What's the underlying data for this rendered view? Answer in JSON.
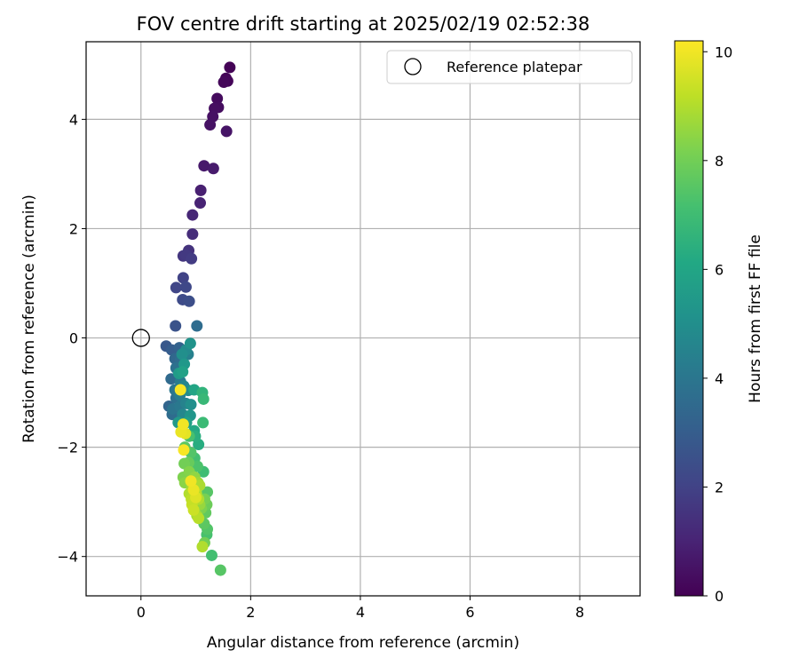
{
  "chart_data": {
    "type": "scatter",
    "title": "FOV centre drift starting at 2025/02/19 02:52:38",
    "xlabel": "Angular distance from reference (arcmin)",
    "ylabel": "Rotation from reference (arcmin)",
    "xlim": [
      -1,
      9.1
    ],
    "ylim": [
      -4.72,
      5.42
    ],
    "xticks": [
      0,
      2,
      4,
      6,
      8
    ],
    "yticks": [
      -4,
      -2,
      0,
      2,
      4
    ],
    "xtick_labels": [
      "0",
      "2",
      "4",
      "6",
      "8"
    ],
    "ytick_labels": [
      "−4",
      "−2",
      "0",
      "2",
      "4"
    ],
    "grid": true,
    "legend": {
      "placement": "top-right",
      "entries": [
        "Reference platepar"
      ]
    },
    "reference_point": {
      "x": 0,
      "y": 0,
      "label": "Reference platepar",
      "marker": "open-circle"
    },
    "colorbar": {
      "label": "Hours from first FF file",
      "colormap": "viridis",
      "range": [
        0,
        10.2
      ],
      "ticks": [
        0,
        2,
        4,
        6,
        8,
        10
      ],
      "tick_labels": [
        "0",
        "2",
        "4",
        "6",
        "8",
        "10"
      ]
    },
    "points": [
      {
        "x": 1.62,
        "y": 4.95,
        "c": 0.05
      },
      {
        "x": 1.55,
        "y": 4.75,
        "c": 0.1
      },
      {
        "x": 1.58,
        "y": 4.7,
        "c": 0.15
      },
      {
        "x": 1.51,
        "y": 4.68,
        "c": 0.2
      },
      {
        "x": 1.39,
        "y": 4.38,
        "c": 0.3
      },
      {
        "x": 1.41,
        "y": 4.22,
        "c": 0.35
      },
      {
        "x": 1.34,
        "y": 4.2,
        "c": 0.4
      },
      {
        "x": 1.31,
        "y": 4.05,
        "c": 0.45
      },
      {
        "x": 1.26,
        "y": 3.9,
        "c": 0.5
      },
      {
        "x": 1.56,
        "y": 3.78,
        "c": 0.55
      },
      {
        "x": 1.15,
        "y": 3.15,
        "c": 0.7
      },
      {
        "x": 1.32,
        "y": 3.1,
        "c": 0.75
      },
      {
        "x": 1.09,
        "y": 2.7,
        "c": 0.9
      },
      {
        "x": 1.08,
        "y": 2.47,
        "c": 1.0
      },
      {
        "x": 0.94,
        "y": 2.25,
        "c": 1.1
      },
      {
        "x": 0.94,
        "y": 1.9,
        "c": 1.3
      },
      {
        "x": 0.87,
        "y": 1.6,
        "c": 1.5
      },
      {
        "x": 0.77,
        "y": 1.5,
        "c": 1.6
      },
      {
        "x": 0.82,
        "y": 1.52,
        "c": 1.7
      },
      {
        "x": 0.92,
        "y": 1.45,
        "c": 1.8
      },
      {
        "x": 0.77,
        "y": 1.1,
        "c": 2.0
      },
      {
        "x": 0.64,
        "y": 0.92,
        "c": 2.1
      },
      {
        "x": 0.82,
        "y": 0.93,
        "c": 2.2
      },
      {
        "x": 0.76,
        "y": 0.7,
        "c": 2.3
      },
      {
        "x": 0.88,
        "y": 0.67,
        "c": 2.4
      },
      {
        "x": 0.63,
        "y": 0.22,
        "c": 2.6
      },
      {
        "x": 1.02,
        "y": 0.22,
        "c": 3.6
      },
      {
        "x": 0.46,
        "y": -0.15,
        "c": 2.8
      },
      {
        "x": 0.56,
        "y": -0.22,
        "c": 3.0
      },
      {
        "x": 0.7,
        "y": -0.18,
        "c": 3.2
      },
      {
        "x": 0.62,
        "y": -0.38,
        "c": 3.4
      },
      {
        "x": 0.72,
        "y": -0.4,
        "c": 3.6
      },
      {
        "x": 0.86,
        "y": -0.3,
        "c": 4.4
      },
      {
        "x": 0.9,
        "y": -0.1,
        "c": 5.2
      },
      {
        "x": 0.82,
        "y": -0.22,
        "c": 4.8
      },
      {
        "x": 0.75,
        "y": -0.3,
        "c": 5.0
      },
      {
        "x": 0.79,
        "y": -0.48,
        "c": 5.4
      },
      {
        "x": 0.64,
        "y": -0.55,
        "c": 3.8
      },
      {
        "x": 0.69,
        "y": -0.65,
        "c": 5.6
      },
      {
        "x": 0.76,
        "y": -0.62,
        "c": 5.8
      },
      {
        "x": 0.55,
        "y": -0.75,
        "c": 3.5
      },
      {
        "x": 0.72,
        "y": -0.8,
        "c": 4.2
      },
      {
        "x": 0.62,
        "y": -0.95,
        "c": 4.0
      },
      {
        "x": 0.78,
        "y": -0.88,
        "c": 4.6
      },
      {
        "x": 0.86,
        "y": -0.96,
        "c": 4.9
      },
      {
        "x": 0.97,
        "y": -0.95,
        "c": 6.0
      },
      {
        "x": 0.71,
        "y": -1.05,
        "c": 4.3
      },
      {
        "x": 1.12,
        "y": -1.0,
        "c": 6.6
      },
      {
        "x": 1.14,
        "y": -1.12,
        "c": 6.8
      },
      {
        "x": 0.64,
        "y": -1.1,
        "c": 3.7
      },
      {
        "x": 0.51,
        "y": -1.25,
        "c": 3.3
      },
      {
        "x": 0.58,
        "y": -1.3,
        "c": 3.9
      },
      {
        "x": 0.71,
        "y": -1.25,
        "c": 4.1
      },
      {
        "x": 0.82,
        "y": -1.2,
        "c": 4.5
      },
      {
        "x": 0.91,
        "y": -1.22,
        "c": 5.0
      },
      {
        "x": 0.57,
        "y": -1.4,
        "c": 3.6
      },
      {
        "x": 0.76,
        "y": -1.4,
        "c": 4.7
      },
      {
        "x": 0.9,
        "y": -1.42,
        "c": 5.3
      },
      {
        "x": 0.68,
        "y": -1.55,
        "c": 5.5
      },
      {
        "x": 0.83,
        "y": -1.55,
        "c": 5.7
      },
      {
        "x": 1.13,
        "y": -1.55,
        "c": 6.9
      },
      {
        "x": 0.97,
        "y": -1.7,
        "c": 6.1
      },
      {
        "x": 0.88,
        "y": -1.8,
        "c": 7.2
      },
      {
        "x": 0.99,
        "y": -1.8,
        "c": 6.4
      },
      {
        "x": 1.05,
        "y": -1.95,
        "c": 6.3
      },
      {
        "x": 0.8,
        "y": -2.0,
        "c": 7.6
      },
      {
        "x": 0.91,
        "y": -2.1,
        "c": 7.4
      },
      {
        "x": 0.98,
        "y": -2.2,
        "c": 7.1
      },
      {
        "x": 0.79,
        "y": -2.3,
        "c": 8.0
      },
      {
        "x": 0.87,
        "y": -2.28,
        "c": 7.8
      },
      {
        "x": 1.03,
        "y": -2.35,
        "c": 7.3
      },
      {
        "x": 1.14,
        "y": -2.45,
        "c": 7.0
      },
      {
        "x": 0.77,
        "y": -2.55,
        "c": 8.2
      },
      {
        "x": 0.88,
        "y": -2.45,
        "c": 8.3
      },
      {
        "x": 0.98,
        "y": -2.55,
        "c": 8.5
      },
      {
        "x": 1.04,
        "y": -2.65,
        "c": 8.7
      },
      {
        "x": 0.8,
        "y": -2.65,
        "c": 8.4
      },
      {
        "x": 0.93,
        "y": -2.75,
        "c": 8.8
      },
      {
        "x": 1.07,
        "y": -2.7,
        "c": 8.9
      },
      {
        "x": 0.88,
        "y": -2.85,
        "c": 9.0
      },
      {
        "x": 1.01,
        "y": -2.85,
        "c": 9.1
      },
      {
        "x": 1.21,
        "y": -2.82,
        "c": 7.5
      },
      {
        "x": 0.92,
        "y": -2.95,
        "c": 9.2
      },
      {
        "x": 1.05,
        "y": -2.95,
        "c": 9.0
      },
      {
        "x": 1.16,
        "y": -2.95,
        "c": 8.1
      },
      {
        "x": 0.93,
        "y": -3.05,
        "c": 9.3
      },
      {
        "x": 1.07,
        "y": -3.05,
        "c": 8.6
      },
      {
        "x": 1.2,
        "y": -3.05,
        "c": 7.9
      },
      {
        "x": 0.96,
        "y": -3.15,
        "c": 9.4
      },
      {
        "x": 1.1,
        "y": -3.12,
        "c": 8.2
      },
      {
        "x": 1.02,
        "y": -3.25,
        "c": 8.8
      },
      {
        "x": 1.18,
        "y": -3.2,
        "c": 7.7
      },
      {
        "x": 1.05,
        "y": -3.3,
        "c": 9.1
      },
      {
        "x": 1.15,
        "y": -3.4,
        "c": 7.6
      },
      {
        "x": 1.21,
        "y": -3.5,
        "c": 7.4
      },
      {
        "x": 1.2,
        "y": -3.6,
        "c": 7.2
      },
      {
        "x": 1.16,
        "y": -3.75,
        "c": 8.0
      },
      {
        "x": 1.12,
        "y": -3.82,
        "c": 9.0
      },
      {
        "x": 1.29,
        "y": -3.98,
        "c": 7.1
      },
      {
        "x": 1.45,
        "y": -4.25,
        "c": 7.5
      },
      {
        "x": 0.72,
        "y": -0.95,
        "c": 10.1
      },
      {
        "x": 0.77,
        "y": -1.58,
        "c": 10.0
      },
      {
        "x": 0.73,
        "y": -1.72,
        "c": 9.9
      },
      {
        "x": 0.81,
        "y": -1.75,
        "c": 9.8
      },
      {
        "x": 0.78,
        "y": -2.05,
        "c": 10.1
      },
      {
        "x": 0.91,
        "y": -2.62,
        "c": 10.0
      },
      {
        "x": 0.96,
        "y": -2.78,
        "c": 9.9
      },
      {
        "x": 1.0,
        "y": -2.92,
        "c": 9.7
      }
    ]
  }
}
